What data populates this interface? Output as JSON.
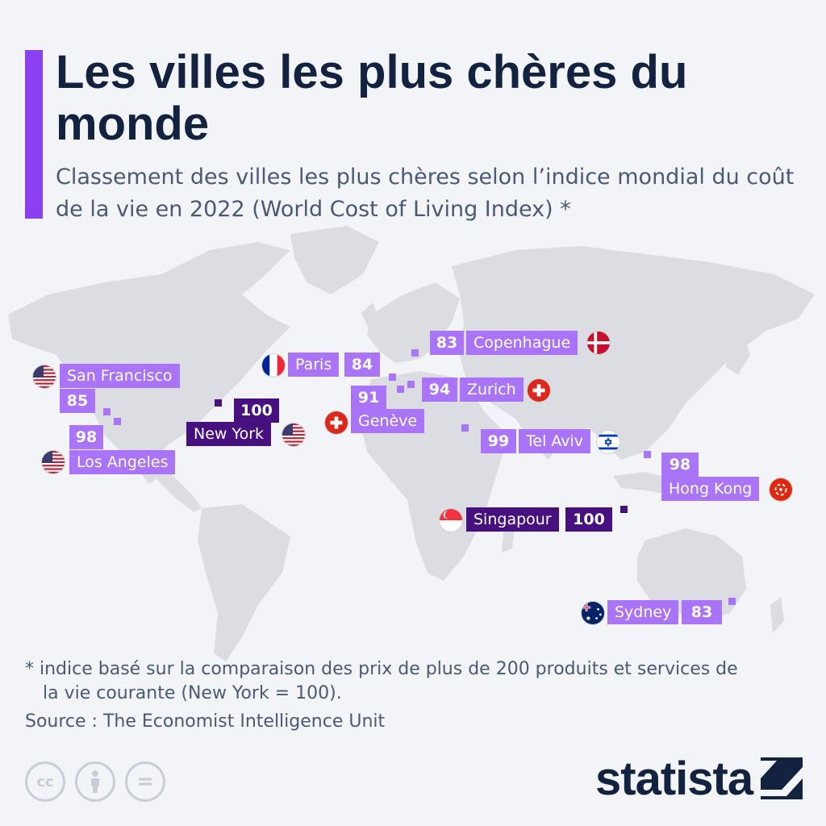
{
  "title": "Les villes les plus chères du monde",
  "subtitle": "Classement des villes les plus chères selon l’indice mondial du coût de la vie en 2022 (World Cost of Living Index) *",
  "cities": {
    "san_francisco": {
      "name": "San Francisco",
      "score": "85"
    },
    "los_angeles": {
      "name": "Los Angeles",
      "score": "98"
    },
    "new_york": {
      "name": "New York",
      "score": "100"
    },
    "paris": {
      "name": "Paris",
      "score": "84"
    },
    "copenhague": {
      "name": "Copenhague",
      "score": "83"
    },
    "zurich": {
      "name": "Zurich",
      "score": "94"
    },
    "geneve": {
      "name": "Genève",
      "score": "91"
    },
    "tel_aviv": {
      "name": "Tel Aviv",
      "score": "99"
    },
    "hong_kong": {
      "name": "Hong Kong",
      "score": "98"
    },
    "singapour": {
      "name": "Singapour",
      "score": "100"
    },
    "sydney": {
      "name": "Sydney",
      "score": "83"
    }
  },
  "footnote_line1": "* indice basé sur la comparaison des prix de plus de 200 produits et services de",
  "footnote_line2": "la vie courante (New York = 100).",
  "source": "Source : The Economist Intelligence Unit",
  "license_icons": [
    "cc-icon",
    "attribution-icon",
    "no-derivatives-icon"
  ],
  "license_glyphs": {
    "cc": "cc",
    "equals": "="
  },
  "brand": "statista",
  "colors": {
    "accent": "#8a3ff0",
    "label_light": "#a974f7",
    "label_dark": "#46117e",
    "map_land": "#dcdde2",
    "title": "#13233f"
  }
}
